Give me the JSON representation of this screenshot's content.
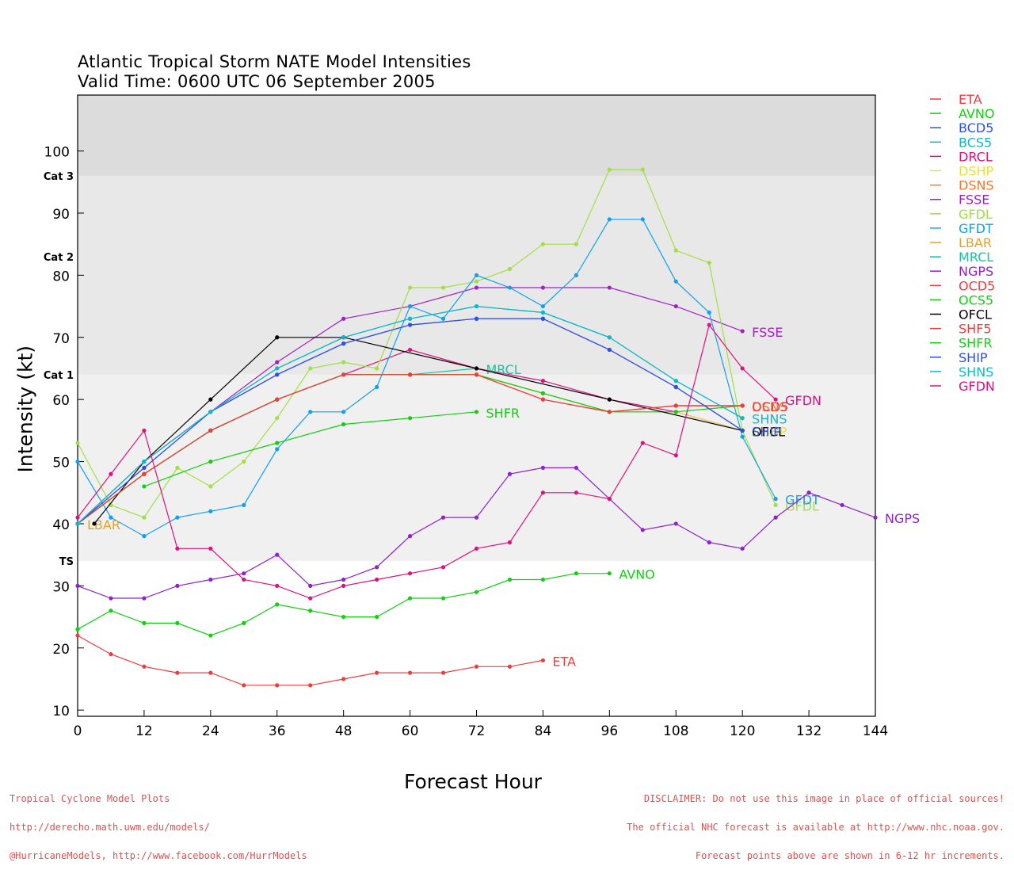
{
  "header": {
    "title_line1": "Atlantic Tropical Storm NATE Model Intensities",
    "title_line2": "Valid Time: 0600 UTC 06 September 2005"
  },
  "footer": {
    "left_lines": [
      "Tropical Cyclone Model Plots",
      "http://derecho.math.uwm.edu/models/",
      "@HurricaneModels, http://www.facebook.com/HurrModels"
    ],
    "right_lines": [
      "DISCLAIMER: Do not use this image in place of official sources!",
      "The official NHC forecast is available at http://www.nhc.noaa.gov.",
      "Forecast points above are shown in 6-12 hr increments."
    ]
  },
  "chart_data": {
    "type": "line",
    "title": "Atlantic Tropical Storm NATE Model Intensities",
    "subtitle": "Valid Time: 0600 UTC 06 September 2005",
    "xlabel": "Forecast Hour",
    "ylabel": "Intensity (kt)",
    "xlim": [
      0,
      144
    ],
    "ylim": [
      9,
      109
    ],
    "xticks": [
      0,
      12,
      24,
      36,
      48,
      60,
      72,
      84,
      96,
      108,
      120,
      132,
      144
    ],
    "yticks": [
      10,
      20,
      30,
      40,
      50,
      60,
      70,
      80,
      90,
      100
    ],
    "bands": [
      {
        "from": 34,
        "to": 64,
        "color": "#f0f0f0"
      },
      {
        "from": 64,
        "to": 96,
        "color": "#e8e8e8"
      },
      {
        "from": 96,
        "to": 109,
        "color": "#dcdcdc"
      }
    ],
    "category_labels": [
      {
        "label": "TS",
        "y": 34
      },
      {
        "label": "Cat 1",
        "y": 64
      },
      {
        "label": "Cat 2",
        "y": 83
      },
      {
        "label": "Cat 3",
        "y": 96
      }
    ],
    "legend_position": "right",
    "series": [
      {
        "name": "ETA",
        "color": "#f03c3c",
        "end_label": "ETA",
        "x": [
          0,
          6,
          12,
          18,
          24,
          30,
          36,
          42,
          48,
          54,
          60,
          66,
          72,
          78,
          84
        ],
        "y": [
          22,
          19,
          17,
          16,
          16,
          14,
          14,
          14,
          15,
          16,
          16,
          16,
          17,
          17,
          18
        ]
      },
      {
        "name": "AVNO",
        "color": "#10d010",
        "end_label": "AVNO",
        "x": [
          0,
          6,
          12,
          18,
          24,
          30,
          36,
          42,
          48,
          54,
          60,
          66,
          72,
          78,
          84,
          90,
          96
        ],
        "y": [
          23,
          26,
          24,
          24,
          22,
          24,
          27,
          26,
          25,
          25,
          28,
          28,
          29,
          31,
          31,
          32,
          32
        ]
      },
      {
        "name": "BCD5",
        "color": "#3250e0",
        "end_label": "",
        "x": [
          0,
          12,
          24,
          36,
          48,
          60,
          72,
          84,
          96,
          108,
          120
        ],
        "y": [
          40,
          49,
          58,
          64,
          69,
          72,
          73,
          73,
          68,
          62,
          55
        ]
      },
      {
        "name": "BCS5",
        "color": "#10b8c8",
        "end_label": "",
        "x": [
          0,
          12,
          24,
          36,
          48,
          60,
          72,
          84,
          96,
          108,
          120
        ],
        "y": [
          40,
          50,
          58,
          65,
          70,
          73,
          75,
          74,
          70,
          63,
          57
        ]
      },
      {
        "name": "DRCL",
        "color": "#e01080",
        "end_label": "",
        "x": [
          0,
          12,
          24,
          36,
          48,
          60,
          72,
          84,
          96,
          108,
          120
        ],
        "y": [
          40,
          48,
          55,
          60,
          64,
          68,
          65,
          63,
          60,
          58,
          55
        ]
      },
      {
        "name": "DSHP",
        "color": "#e8e040",
        "end_label": "DSHP",
        "x": [
          0,
          12,
          24,
          36,
          48,
          60,
          72,
          84,
          96,
          108,
          120
        ],
        "y": [
          40,
          48,
          55,
          60,
          64,
          64,
          64,
          61,
          58,
          58,
          55
        ]
      },
      {
        "name": "DSNS",
        "color": "#f07830",
        "end_label": "DSNS",
        "x": [
          0,
          12,
          24,
          36,
          48,
          60,
          72,
          84,
          96,
          108,
          120
        ],
        "y": [
          40,
          48,
          55,
          60,
          64,
          64,
          64,
          61,
          58,
          59,
          59
        ]
      },
      {
        "name": "FSSE",
        "color": "#a020c8",
        "end_label": "FSSE",
        "x": [
          0,
          12,
          24,
          36,
          48,
          60,
          72,
          84,
          96,
          108,
          120
        ],
        "y": [
          40,
          50,
          58,
          66,
          73,
          75,
          78,
          78,
          78,
          75,
          71
        ]
      },
      {
        "name": "GFDL",
        "color": "#a0e040",
        "end_label": "GFDL",
        "x": [
          0,
          6,
          12,
          18,
          24,
          30,
          36,
          42,
          48,
          54,
          60,
          66,
          72,
          78,
          84,
          90,
          96,
          102,
          108,
          114,
          120,
          126
        ],
        "y": [
          53,
          43,
          41,
          49,
          46,
          50,
          57,
          65,
          66,
          65,
          78,
          78,
          79,
          81,
          85,
          85,
          97,
          97,
          84,
          82,
          55,
          43
        ]
      },
      {
        "name": "GFDT",
        "color": "#10a0f0",
        "end_label": "GFDT",
        "x": [
          0,
          6,
          12,
          18,
          24,
          30,
          36,
          42,
          48,
          54,
          60,
          66,
          72,
          78,
          84,
          90,
          96,
          102,
          108,
          114,
          120,
          126
        ],
        "y": [
          50,
          41,
          38,
          41,
          42,
          43,
          52,
          58,
          58,
          62,
          75,
          73,
          80,
          78,
          75,
          80,
          89,
          89,
          79,
          74,
          54,
          44
        ]
      },
      {
        "name": "LBAR",
        "color": "#e8a020",
        "end_label": "LBAR",
        "x": [
          0
        ],
        "y": [
          40
        ]
      },
      {
        "name": "MRCL",
        "color": "#10c8a0",
        "end_label": "MRCL",
        "x": [
          0,
          12,
          24,
          36,
          48,
          60,
          72
        ],
        "y": [
          40,
          48,
          55,
          60,
          64,
          64,
          65
        ]
      },
      {
        "name": "NGPS",
        "color": "#9020d0",
        "end_label": "NGPS",
        "x": [
          0,
          6,
          12,
          18,
          24,
          30,
          36,
          42,
          48,
          54,
          60,
          66,
          72,
          78,
          84,
          90,
          96,
          102,
          108,
          114,
          120,
          126,
          132,
          138,
          144
        ],
        "y": [
          30,
          28,
          28,
          30,
          31,
          32,
          35,
          30,
          31,
          33,
          38,
          41,
          41,
          48,
          49,
          49,
          44,
          39,
          40,
          37,
          36,
          41,
          45,
          43,
          41
        ]
      },
      {
        "name": "OCD5",
        "color": "#f03c3c",
        "end_label": "OCD5",
        "x": [
          0,
          12,
          24,
          36,
          48,
          60,
          72,
          84,
          96,
          108,
          120
        ],
        "y": [
          40,
          48,
          55,
          60,
          64,
          64,
          64,
          60,
          58,
          59,
          59
        ]
      },
      {
        "name": "OCS5",
        "color": "#10d010",
        "end_label": "",
        "x": [
          0,
          12,
          24,
          36,
          48,
          60,
          72,
          84,
          96,
          108,
          120
        ],
        "y": [
          40,
          48,
          55,
          60,
          64,
          64,
          64,
          61,
          58,
          58,
          59
        ]
      },
      {
        "name": "OFCL",
        "color": "#000000",
        "end_label": "OFCL",
        "x": [
          3,
          12,
          24,
          36,
          48,
          72,
          96,
          120
        ],
        "y": [
          40,
          50,
          60,
          70,
          70,
          65,
          60,
          55
        ]
      },
      {
        "name": "SHF5",
        "color": "#f03c3c",
        "end_label": "",
        "x": [
          0,
          12,
          24,
          36,
          48,
          60,
          72,
          84,
          96,
          108,
          120
        ],
        "y": [
          40,
          48,
          55,
          60,
          64,
          64,
          64,
          60,
          58,
          59,
          59
        ]
      },
      {
        "name": "SHFR",
        "color": "#10d010",
        "end_label": "SHFR",
        "x": [
          12,
          24,
          36,
          48,
          60,
          72
        ],
        "y": [
          46,
          50,
          53,
          56,
          57,
          58
        ]
      },
      {
        "name": "SHIP",
        "color": "#3250e0",
        "end_label": "SHIP",
        "x": [
          0,
          12,
          24,
          36,
          48,
          60,
          72,
          84,
          96,
          108,
          120
        ],
        "y": [
          40,
          49,
          58,
          64,
          69,
          72,
          73,
          73,
          68,
          62,
          55
        ]
      },
      {
        "name": "SHNS",
        "color": "#10b8c8",
        "end_label": "SHNS",
        "x": [
          0,
          12,
          24,
          36,
          48,
          60,
          72,
          84,
          96,
          108,
          120
        ],
        "y": [
          40,
          50,
          58,
          65,
          70,
          73,
          75,
          74,
          70,
          63,
          57
        ]
      },
      {
        "name": "GFDN",
        "color": "#e01080",
        "end_label": "GFDN",
        "x": [
          0,
          6,
          12,
          18,
          24,
          30,
          36,
          42,
          48,
          54,
          60,
          66,
          72,
          78,
          84,
          90,
          96,
          102,
          108,
          114,
          120,
          126
        ],
        "y": [
          41,
          48,
          55,
          36,
          36,
          31,
          30,
          28,
          30,
          31,
          32,
          33,
          36,
          37,
          45,
          45,
          44,
          53,
          51,
          72,
          65,
          60
        ]
      }
    ]
  }
}
